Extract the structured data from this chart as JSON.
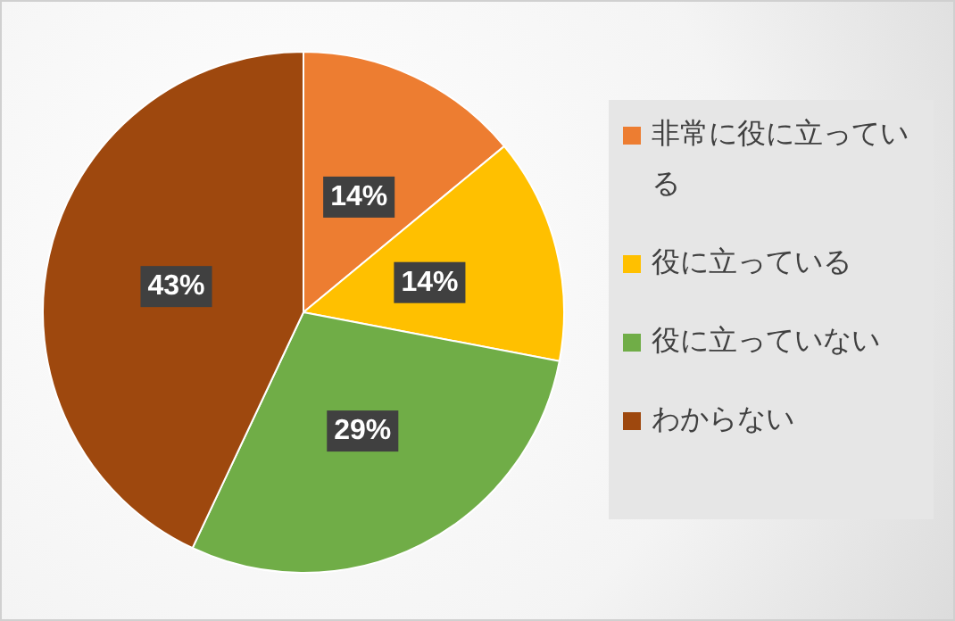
{
  "chart_data": {
    "type": "pie",
    "categories": [
      "非常に役に立っている",
      "役に立っている",
      "役に立っていない",
      "わからない"
    ],
    "values": [
      14,
      14,
      29,
      43
    ],
    "value_labels": [
      "14%",
      "14%",
      "29%",
      "43%"
    ],
    "colors": [
      "#ed7d31",
      "#ffc000",
      "#70ad47",
      "#9e480e"
    ],
    "legend": "right"
  }
}
